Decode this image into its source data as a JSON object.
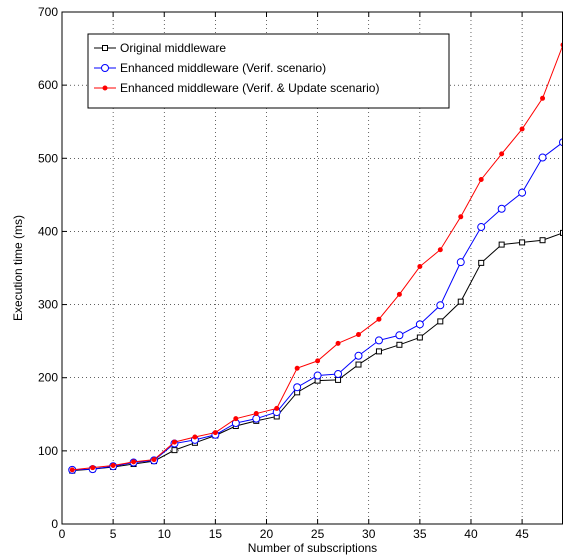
{
  "chart_data": {
    "type": "line",
    "title": "",
    "xlabel": "Number of subscriptions",
    "ylabel": "Execution time (ms)",
    "xlim": [
      0,
      49
    ],
    "ylim": [
      0,
      700
    ],
    "x_ticks": [
      0,
      5,
      10,
      15,
      20,
      25,
      30,
      35,
      40,
      45
    ],
    "y_ticks": [
      0,
      100,
      200,
      300,
      400,
      500,
      600,
      700
    ],
    "grid": true,
    "legend_position": "top-left",
    "x": [
      1,
      3,
      5,
      7,
      9,
      11,
      13,
      15,
      17,
      19,
      21,
      23,
      25,
      27,
      29,
      31,
      33,
      35,
      37,
      39,
      41,
      43,
      45,
      47,
      49
    ],
    "series": [
      {
        "name": "Original middleware",
        "color": "#000000",
        "marker": "square",
        "values": [
          73,
          75,
          78,
          82,
          86,
          101,
          111,
          121,
          134,
          141,
          147,
          180,
          196,
          197,
          218,
          236,
          245,
          255,
          277,
          304,
          357,
          382,
          385,
          388,
          398
        ]
      },
      {
        "name": "Enhanced middleware (Verif. scenario)",
        "color": "#0000ff",
        "marker": "circle",
        "values": [
          74,
          75,
          79,
          84,
          87,
          110,
          115,
          122,
          138,
          144,
          153,
          187,
          203,
          205,
          230,
          251,
          258,
          273,
          299,
          358,
          406,
          431,
          453,
          501,
          522
        ]
      },
      {
        "name": "Enhanced middleware (Verif. & Update scenario)",
        "color": "#ff0000",
        "marker": "dot",
        "values": [
          74,
          77,
          80,
          85,
          88,
          112,
          119,
          125,
          144,
          151,
          158,
          213,
          223,
          247,
          259,
          280,
          314,
          352,
          375,
          420,
          471,
          506,
          540,
          582,
          655
        ]
      }
    ]
  }
}
